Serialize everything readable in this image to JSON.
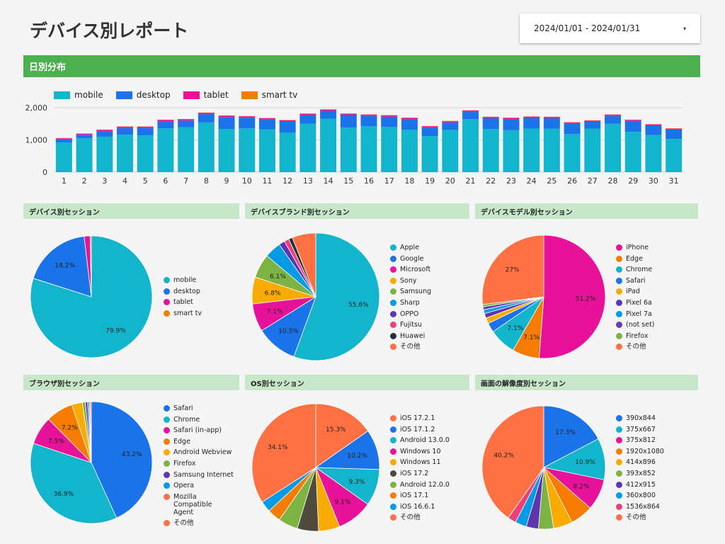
{
  "title": "デバイス別レポート",
  "date_range": {
    "label": "2024/01/01 - 2024/01/31",
    "caret": "▾"
  },
  "daily_section": {
    "title": "日別分布"
  },
  "colors": {
    "band": "#4caf50",
    "section_bg": "#c8e6c9"
  },
  "chart_data": [
    {
      "type": "bar",
      "stacked": true,
      "title": "",
      "categories": [
        "1",
        "2",
        "3",
        "4",
        "5",
        "6",
        "7",
        "8",
        "9",
        "10",
        "11",
        "12",
        "13",
        "14",
        "15",
        "16",
        "17",
        "18",
        "19",
        "20",
        "21",
        "22",
        "23",
        "24",
        "25",
        "26",
        "27",
        "28",
        "29",
        "30",
        "31"
      ],
      "series": [
        {
          "name": "mobile",
          "color": "#12b5cb",
          "values": [
            920,
            1050,
            1100,
            1160,
            1140,
            1360,
            1390,
            1540,
            1340,
            1360,
            1330,
            1230,
            1500,
            1660,
            1380,
            1420,
            1400,
            1310,
            1120,
            1310,
            1640,
            1340,
            1300,
            1350,
            1350,
            1180,
            1350,
            1500,
            1250,
            1150,
            1030
          ]
        },
        {
          "name": "desktop",
          "color": "#1a73e8",
          "values": [
            100,
            110,
            170,
            210,
            230,
            220,
            210,
            260,
            370,
            330,
            300,
            340,
            270,
            240,
            400,
            320,
            320,
            330,
            260,
            230,
            230,
            330,
            340,
            330,
            320,
            320,
            210,
            240,
            340,
            300,
            290
          ]
        },
        {
          "name": "tablet",
          "color": "#e8129a",
          "values": [
            30,
            30,
            40,
            40,
            40,
            40,
            40,
            40,
            40,
            40,
            40,
            40,
            40,
            40,
            30,
            40,
            40,
            40,
            40,
            40,
            40,
            40,
            40,
            40,
            40,
            40,
            40,
            40,
            30,
            30,
            30
          ]
        },
        {
          "name": "smart tv",
          "color": "#f57c00",
          "values": [
            10,
            10,
            10,
            10,
            10,
            10,
            10,
            10,
            10,
            10,
            10,
            10,
            10,
            10,
            10,
            10,
            10,
            10,
            10,
            10,
            10,
            10,
            10,
            10,
            10,
            10,
            10,
            10,
            10,
            10,
            10
          ]
        }
      ],
      "y_ticks": [
        "0",
        "1,000",
        "2,000"
      ],
      "ylim": [
        0,
        2000
      ],
      "legend": "top-left",
      "grid": true
    },
    {
      "type": "pie",
      "title": "デバイス別セッション",
      "labels": [
        "mobile",
        "desktop",
        "tablet",
        "smart tv"
      ],
      "values": [
        79.9,
        18.2,
        1.6,
        0.3
      ],
      "colors": [
        "#12b5cb",
        "#1a73e8",
        "#e8129a",
        "#f57c00"
      ],
      "data_labels": [
        "79.9%",
        "18.2%",
        "",
        ""
      ],
      "legend": "right"
    },
    {
      "type": "pie",
      "title": "デバイスブランド別セッション",
      "labels": [
        "Apple",
        "Google",
        "Microsoft",
        "Sony",
        "Samsung",
        "Sharp",
        "OPPO",
        "Fujitsu",
        "Huawei",
        "その他"
      ],
      "values": [
        55.6,
        10.5,
        7.1,
        6.8,
        6.1,
        4.2,
        1.5,
        1.2,
        1.0,
        6.0
      ],
      "colors": [
        "#12b5cb",
        "#1a73e8",
        "#e8129a",
        "#f9ab00",
        "#7cb342",
        "#039be5",
        "#5e35b1",
        "#ec407a",
        "#263238",
        "#ff7043"
      ],
      "data_labels": [
        "55.6%",
        "10.5%",
        "7.1%",
        "6.8%",
        "6.1%",
        "",
        "",
        "",
        "",
        ""
      ],
      "legend": "right"
    },
    {
      "type": "pie",
      "title": "デバイスモデル別セッション",
      "labels": [
        "iPhone",
        "Edge",
        "Chrome",
        "Safari",
        "iPad",
        "Pixel 6a",
        "Pixel 7a",
        "(not set)",
        "Firefox",
        "その他"
      ],
      "values": [
        51.2,
        7.1,
        7.1,
        2.5,
        1.5,
        1.2,
        1.0,
        0.8,
        0.6,
        27.0
      ],
      "colors": [
        "#e8129a",
        "#f57c00",
        "#12b5cb",
        "#1a73e8",
        "#f9ab00",
        "#5e35b1",
        "#039be5",
        "#673ab7",
        "#7cb342",
        "#ff7043"
      ],
      "data_labels": [
        "51.2%",
        "7.1%",
        "7.1%",
        "",
        "",
        "",
        "",
        "",
        "",
        "27%"
      ],
      "legend": "right"
    },
    {
      "type": "pie",
      "title": "ブラウザ別セッション",
      "labels": [
        "Safari",
        "Chrome",
        "Safari (in-app)",
        "Edge",
        "Android Webview",
        "Firefox",
        "Samsung Internet",
        "Opera",
        "Mozilla Compatible Agent",
        "その他"
      ],
      "values": [
        43.2,
        36.9,
        7.5,
        7.2,
        2.8,
        0.8,
        0.6,
        0.4,
        0.3,
        0.3
      ],
      "colors": [
        "#1a73e8",
        "#12b5cb",
        "#e8129a",
        "#f57c00",
        "#f9ab00",
        "#7cb342",
        "#5e35b1",
        "#039be5",
        "#ff7043",
        "#ff7043"
      ],
      "data_labels": [
        "43.2%",
        "36.9%",
        "7.5%",
        "7.2%",
        "",
        "",
        "",
        "",
        "",
        ""
      ],
      "legend": "right"
    },
    {
      "type": "pie",
      "title": "OS別セッション",
      "labels": [
        "iOS 17.2.1",
        "iOS 17.1.2",
        "Android 13.0.0",
        "Windows 10",
        "Windows 11",
        "iOS 17.2",
        "Android 12.0.0",
        "iOS 17.1",
        "iOS 16.6.1",
        "その他"
      ],
      "values": [
        15.3,
        10.2,
        9.3,
        9.1,
        5.4,
        5.4,
        5.0,
        3.4,
        2.8,
        34.1
      ],
      "colors": [
        "#ff7043",
        "#1a73e8",
        "#12b5cb",
        "#e8129a",
        "#f9ab00",
        "#4e4a3e",
        "#7cb342",
        "#f57c00",
        "#039be5",
        "#ff7043"
      ],
      "data_labels": [
        "15.3%",
        "10.2%",
        "9.3%",
        "9.1%",
        "",
        "",
        "",
        "",
        "",
        "34.1%"
      ],
      "legend": "right"
    },
    {
      "type": "pie",
      "title": "画面の解像度別セッション",
      "labels": [
        "390x844",
        "375x667",
        "375x812",
        "1920x1080",
        "414x896",
        "393x852",
        "412x915",
        "360x800",
        "1536x864",
        "その他"
      ],
      "values": [
        17.3,
        10.9,
        8.2,
        6.0,
        5.0,
        4.0,
        3.2,
        3.0,
        2.2,
        40.2
      ],
      "colors": [
        "#1a73e8",
        "#12b5cb",
        "#e8129a",
        "#f57c00",
        "#f9ab00",
        "#7cb342",
        "#5e35b1",
        "#039be5",
        "#ec407a",
        "#ff7043"
      ],
      "data_labels": [
        "17.3%",
        "10.9%",
        "8.2%",
        "",
        "",
        "",
        "",
        "",
        "",
        "40.2%"
      ],
      "legend": "right"
    }
  ]
}
